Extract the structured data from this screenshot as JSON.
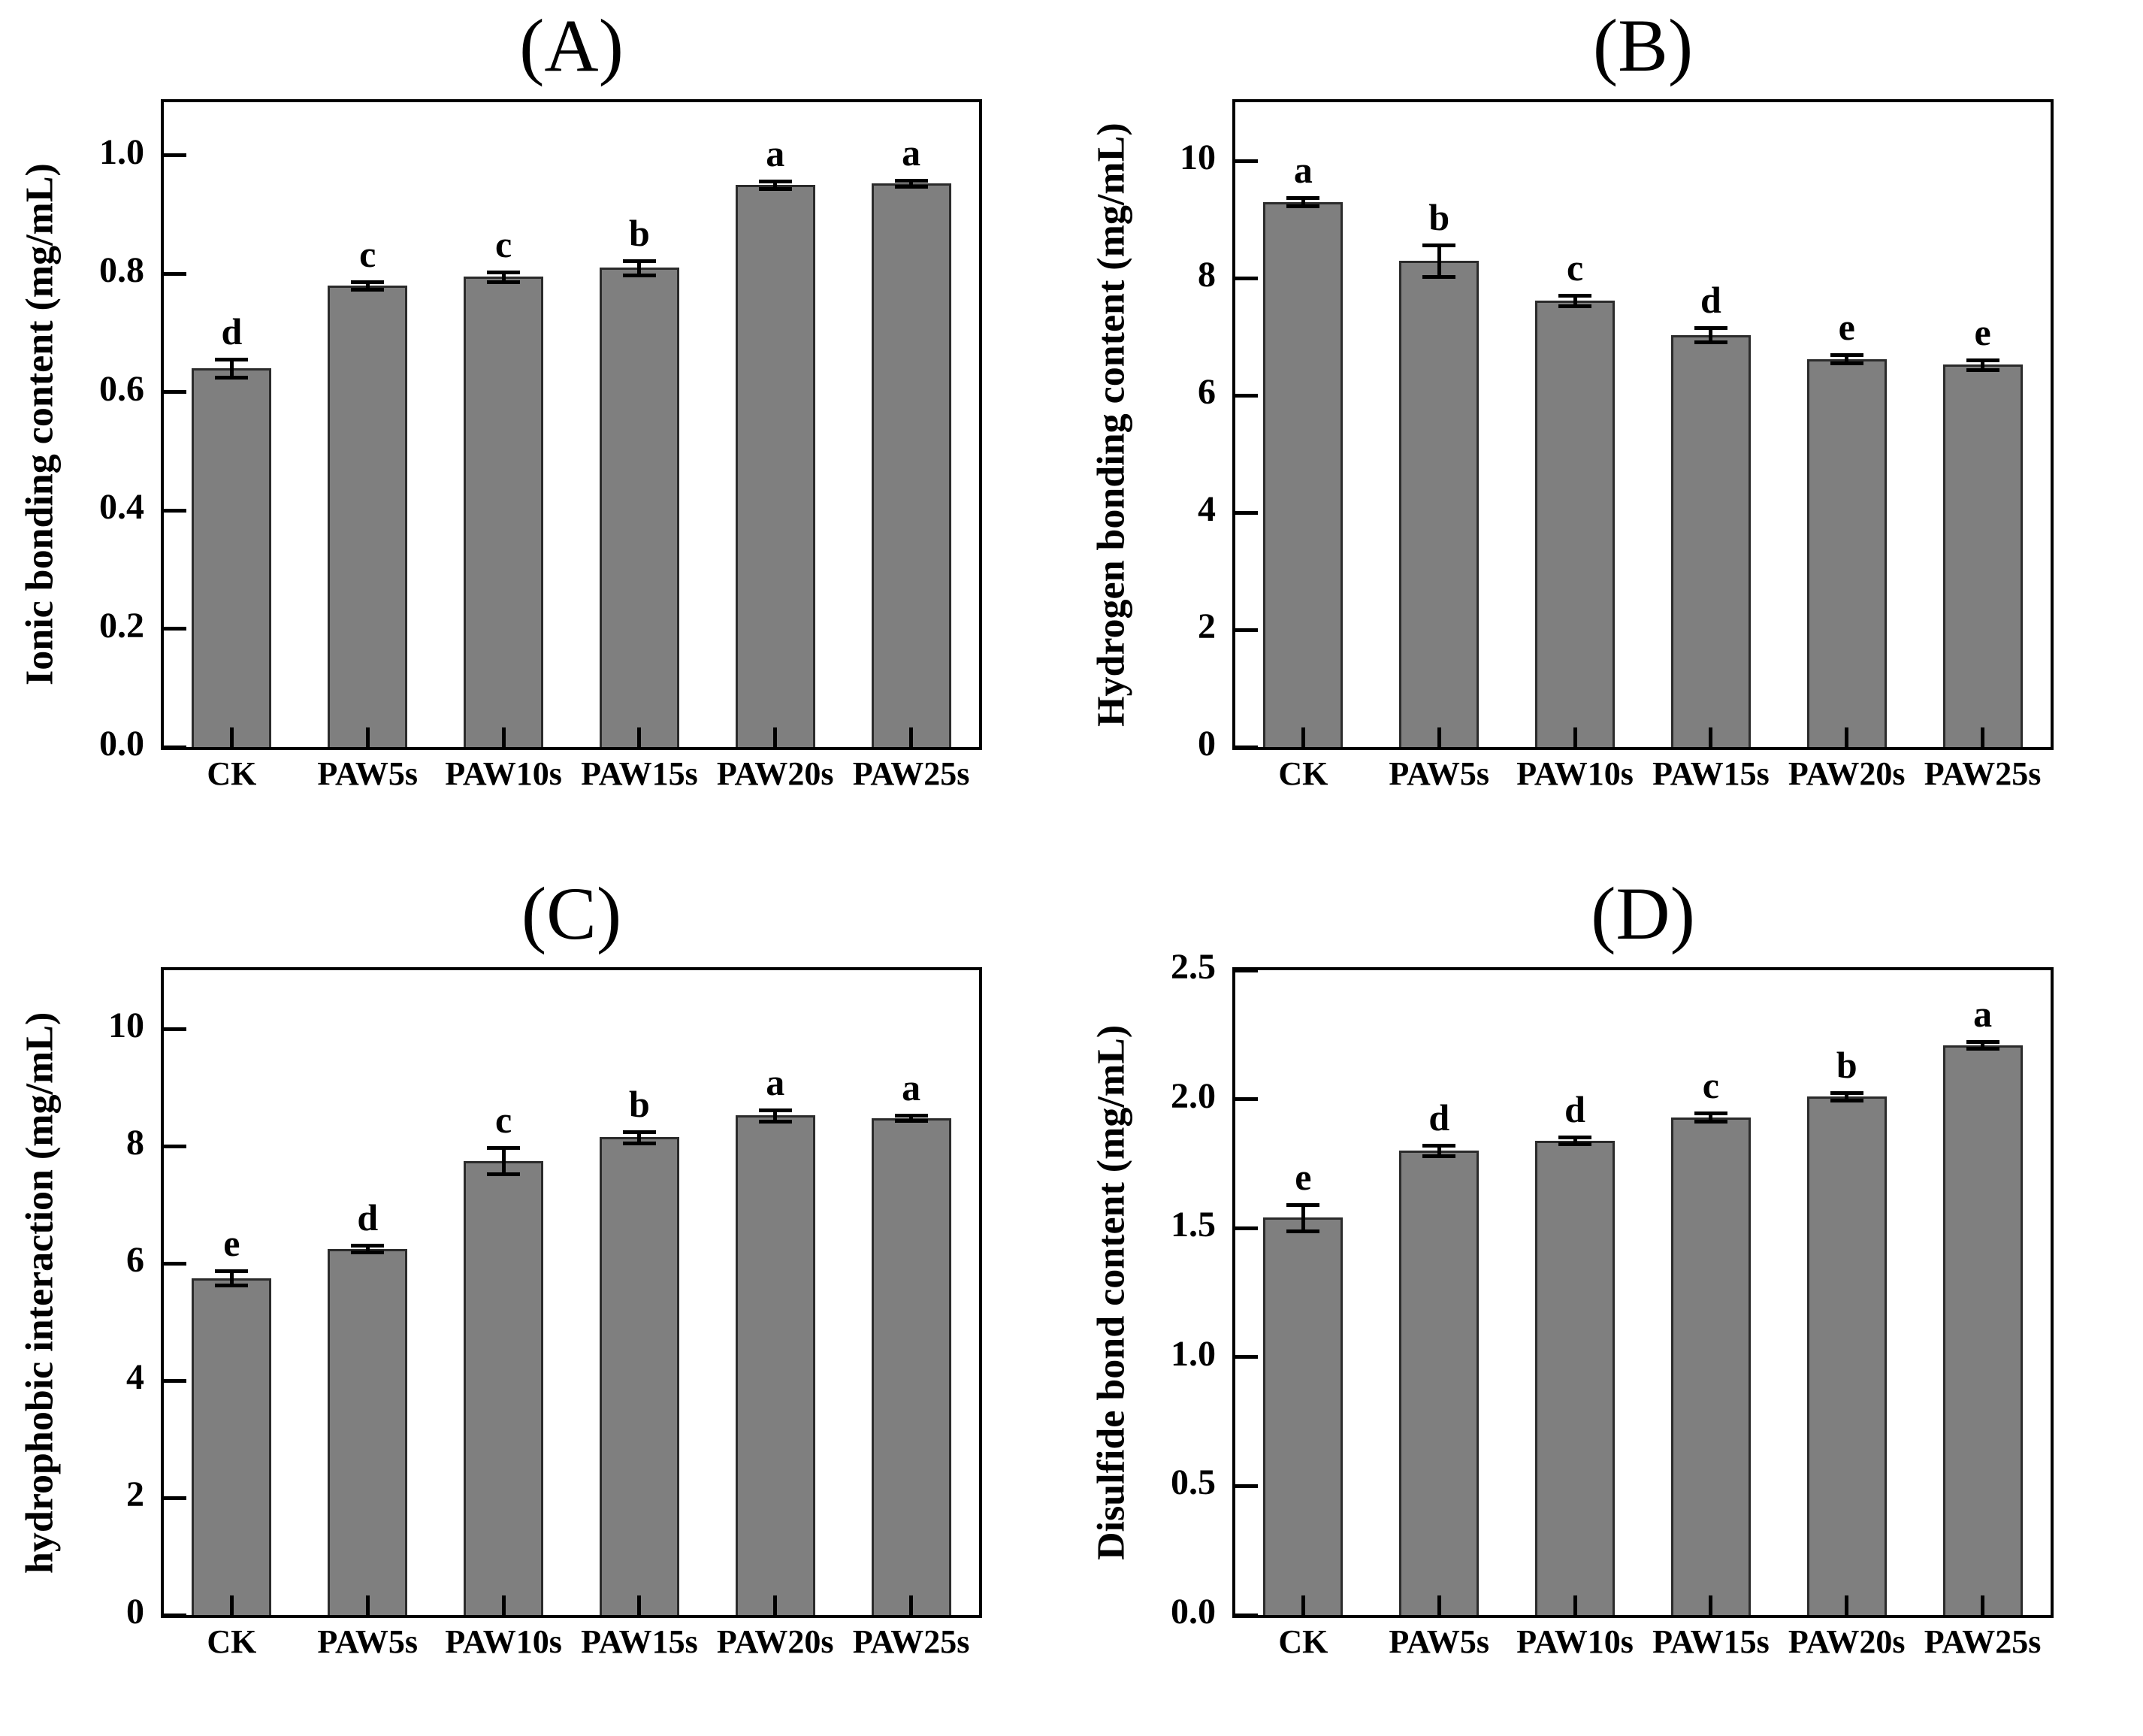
{
  "figure": {
    "background": "#ffffff",
    "text_color": "#000000"
  },
  "chart_data": [
    {
      "panel": "A",
      "type": "bar",
      "title": "(A)",
      "ylabel": "Ionic bonding content (mg/mL)",
      "xlabel": "",
      "categories": [
        "CK",
        "PAW5s",
        "PAW10s",
        "PAW15s",
        "PAW20s",
        "PAW25s"
      ],
      "values": [
        0.64,
        0.78,
        0.795,
        0.81,
        0.95,
        0.953
      ],
      "errors": [
        0.015,
        0.006,
        0.008,
        0.012,
        0.006,
        0.005
      ],
      "sig_letters": [
        "d",
        "c",
        "c",
        "b",
        "a",
        "a"
      ],
      "yticks": [
        0,
        0.2,
        0.4,
        0.6,
        0.8,
        1.0
      ],
      "ytick_labels": [
        "0.0",
        "0.2",
        "0.4",
        "0.6",
        "0.8",
        "1.0"
      ],
      "ylim": [
        0,
        1.09
      ],
      "bar_color": "#7f7f7f",
      "bar_edge_color": "#2b2b2b",
      "grid": false,
      "legend": "none"
    },
    {
      "panel": "B",
      "type": "bar",
      "title": "(B)",
      "ylabel": "Hydrogen bonding content (mg/mL)",
      "xlabel": "",
      "categories": [
        "CK",
        "PAW5s",
        "PAW10s",
        "PAW15s",
        "PAW20s",
        "PAW25s"
      ],
      "values": [
        9.3,
        8.3,
        7.62,
        7.03,
        6.62,
        6.52
      ],
      "errors": [
        0.07,
        0.27,
        0.09,
        0.12,
        0.07,
        0.08
      ],
      "sig_letters": [
        "a",
        "b",
        "c",
        "d",
        "e",
        "e"
      ],
      "yticks": [
        0,
        2,
        4,
        6,
        8,
        10
      ],
      "ytick_labels": [
        "0",
        "2",
        "4",
        "6",
        "8",
        "10"
      ],
      "ylim": [
        0,
        11
      ],
      "bar_color": "#7f7f7f",
      "bar_edge_color": "#2b2b2b",
      "grid": false,
      "legend": "none"
    },
    {
      "panel": "C",
      "type": "bar",
      "title": "(C)",
      "ylabel": "hydrophobic interaction (mg/mL)",
      "xlabel": "",
      "categories": [
        "CK",
        "PAW5s",
        "PAW10s",
        "PAW15s",
        "PAW20s",
        "PAW25s"
      ],
      "values": [
        5.75,
        6.25,
        7.75,
        8.15,
        8.52,
        8.48
      ],
      "errors": [
        0.12,
        0.06,
        0.22,
        0.1,
        0.1,
        0.05
      ],
      "sig_letters": [
        "e",
        "d",
        "c",
        "b",
        "a",
        "a"
      ],
      "yticks": [
        0,
        2,
        4,
        6,
        8,
        10
      ],
      "ytick_labels": [
        "0",
        "2",
        "4",
        "6",
        "8",
        "10"
      ],
      "ylim": [
        0,
        11
      ],
      "bar_color": "#7f7f7f",
      "bar_edge_color": "#2b2b2b",
      "grid": false,
      "legend": "none"
    },
    {
      "panel": "D",
      "type": "bar",
      "title": "(D)",
      "ylabel": "Disulfide bond content (mg/mL)",
      "xlabel": "",
      "categories": [
        "CK",
        "PAW5s",
        "PAW10s",
        "PAW15s",
        "PAW20s",
        "PAW25s"
      ],
      "values": [
        1.54,
        1.8,
        1.84,
        1.93,
        2.01,
        2.21
      ],
      "errors": [
        0.05,
        0.02,
        0.012,
        0.015,
        0.015,
        0.012
      ],
      "sig_letters": [
        "e",
        "d",
        "d",
        "c",
        "b",
        "a"
      ],
      "yticks": [
        0,
        0.5,
        1.0,
        1.5,
        2.0,
        2.5
      ],
      "ytick_labels": [
        "0.0",
        "0.5",
        "1.0",
        "1.5",
        "2.0",
        "2.5"
      ],
      "ylim": [
        0,
        2.5
      ],
      "bar_color": "#7f7f7f",
      "bar_edge_color": "#2b2b2b",
      "grid": false,
      "legend": "none"
    }
  ]
}
